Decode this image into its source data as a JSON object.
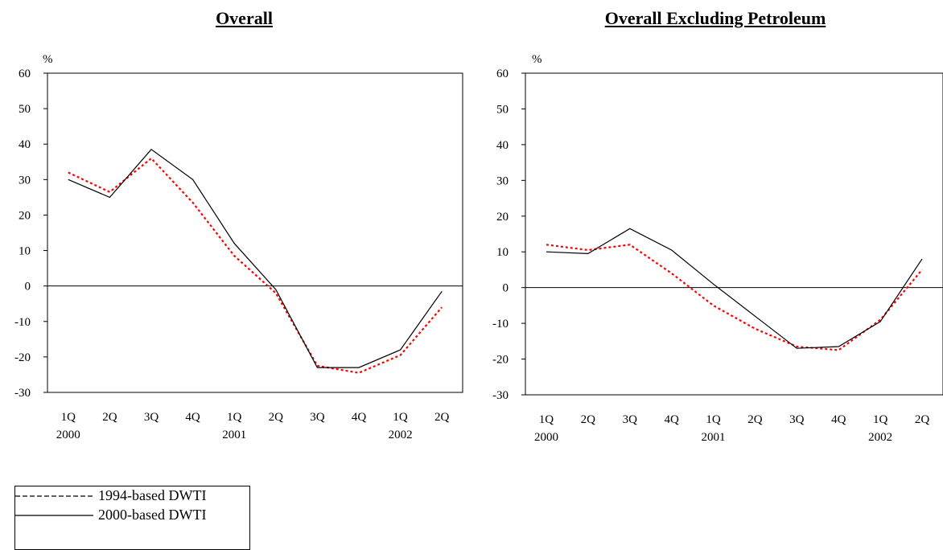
{
  "chart_data": [
    {
      "type": "line",
      "title": "Overall",
      "ylabel": "%",
      "ylim": [
        -30,
        60
      ],
      "yticks": [
        60,
        50,
        40,
        30,
        20,
        10,
        0,
        -10,
        -20,
        -30
      ],
      "categories": [
        "1Q",
        "2Q",
        "3Q",
        "4Q",
        "1Q",
        "2Q",
        "3Q",
        "4Q",
        "1Q",
        "2Q"
      ],
      "year_labels": [
        "2000",
        "2001",
        "2002"
      ],
      "series": [
        {
          "name": "1994-based DWTI",
          "color": "#ff0000",
          "style": "dashed",
          "values": [
            32,
            26.5,
            36,
            23.5,
            8.5,
            -2,
            -22.5,
            -24.5,
            -19.5,
            -6
          ]
        },
        {
          "name": "2000-based DWTI",
          "color": "#000000",
          "style": "solid",
          "values": [
            30,
            25,
            38.5,
            30,
            12,
            -1,
            -23,
            -23,
            -18,
            -1.5
          ]
        }
      ]
    },
    {
      "type": "line",
      "title": "Overall Excluding Petroleum",
      "ylabel": "%",
      "ylim": [
        -30,
        60
      ],
      "yticks": [
        60,
        50,
        40,
        30,
        20,
        10,
        0,
        -10,
        -20,
        -30
      ],
      "categories": [
        "1Q",
        "2Q",
        "3Q",
        "4Q",
        "1Q",
        "2Q",
        "3Q",
        "4Q",
        "1Q",
        "2Q"
      ],
      "year_labels": [
        "2000",
        "2001",
        "2002"
      ],
      "series": [
        {
          "name": "1994-based DWTI",
          "color": "#ff0000",
          "style": "dashed",
          "values": [
            12,
            10.5,
            12,
            4,
            -5,
            -11.5,
            -16.5,
            -17.5,
            -9,
            5
          ]
        },
        {
          "name": "2000-based DWTI",
          "color": "#000000",
          "style": "solid",
          "values": [
            10,
            9.5,
            16.5,
            10.5,
            1,
            -8,
            -17,
            -16.5,
            -9.5,
            8
          ]
        }
      ]
    }
  ],
  "legend": {
    "items": [
      {
        "label": "1994-based DWTI",
        "style": "dashed"
      },
      {
        "label": "2000-based DWTI",
        "style": "solid"
      }
    ]
  }
}
